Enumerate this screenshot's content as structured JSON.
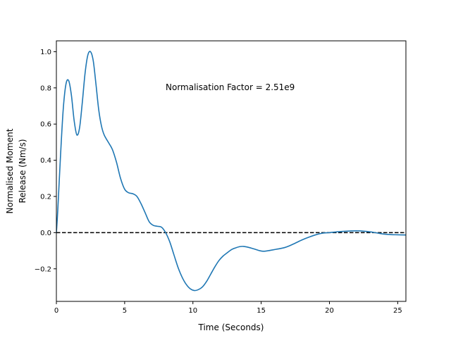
{
  "chart_data": {
    "type": "line",
    "title": "",
    "xlabel": "Time (Seconds)",
    "ylabel_lines": [
      "Normalised Moment",
      "Release (Nm/s)"
    ],
    "xlim": [
      0,
      25.6
    ],
    "ylim": [
      -0.38,
      1.06
    ],
    "xticks": [
      0,
      5,
      10,
      15,
      20,
      25
    ],
    "yticks": [
      -0.2,
      0.0,
      0.2,
      0.4,
      0.6,
      0.8,
      1.0
    ],
    "ytick_labels": [
      "−0.2",
      "0.0",
      "0.2",
      "0.4",
      "0.6",
      "0.8",
      "1.0"
    ],
    "grid": false,
    "annotation": {
      "text": "Normalisation Factor = 2.51e9",
      "x": 8.0,
      "y": 0.81
    },
    "reference_line": {
      "y": 0.0,
      "style": "dashed",
      "color": "#000000"
    },
    "series": [
      {
        "color": "#1f77b4",
        "x": [
          0,
          0.1,
          0.3,
          0.5,
          0.7,
          0.9,
          1.1,
          1.3,
          1.5,
          1.7,
          1.9,
          2.1,
          2.3,
          2.5,
          2.7,
          2.9,
          3.1,
          3.3,
          3.5,
          3.8,
          4.1,
          4.4,
          4.7,
          5.0,
          5.3,
          5.6,
          5.9,
          6.2,
          6.5,
          6.8,
          7.1,
          7.4,
          7.7,
          8.0,
          8.3,
          8.6,
          8.9,
          9.2,
          9.5,
          9.8,
          10.1,
          10.4,
          10.7,
          11.0,
          11.3,
          11.6,
          11.9,
          12.2,
          12.5,
          12.8,
          13.1,
          13.4,
          13.7,
          14.0,
          14.3,
          14.6,
          14.9,
          15.2,
          15.5,
          15.8,
          16.1,
          16.4,
          16.7,
          17.0,
          17.5,
          18.0,
          18.5,
          19.0,
          19.5,
          20.0,
          20.5,
          21.0,
          21.5,
          22.0,
          22.5,
          23.0,
          23.5,
          24.0,
          24.5,
          25.0,
          25.6
        ],
        "y": [
          0.0,
          0.12,
          0.42,
          0.68,
          0.82,
          0.84,
          0.76,
          0.62,
          0.54,
          0.58,
          0.72,
          0.88,
          0.98,
          1.0,
          0.95,
          0.82,
          0.68,
          0.59,
          0.54,
          0.5,
          0.46,
          0.39,
          0.3,
          0.24,
          0.22,
          0.215,
          0.2,
          0.16,
          0.11,
          0.06,
          0.04,
          0.035,
          0.03,
          0.0,
          -0.05,
          -0.12,
          -0.19,
          -0.245,
          -0.285,
          -0.31,
          -0.32,
          -0.315,
          -0.3,
          -0.27,
          -0.23,
          -0.19,
          -0.155,
          -0.13,
          -0.112,
          -0.095,
          -0.085,
          -0.078,
          -0.076,
          -0.08,
          -0.086,
          -0.093,
          -0.1,
          -0.103,
          -0.1,
          -0.096,
          -0.092,
          -0.088,
          -0.083,
          -0.075,
          -0.058,
          -0.04,
          -0.025,
          -0.012,
          -0.003,
          0.0,
          0.004,
          0.007,
          0.009,
          0.01,
          0.008,
          0.004,
          -0.002,
          -0.008,
          -0.011,
          -0.012,
          -0.013
        ]
      }
    ]
  }
}
